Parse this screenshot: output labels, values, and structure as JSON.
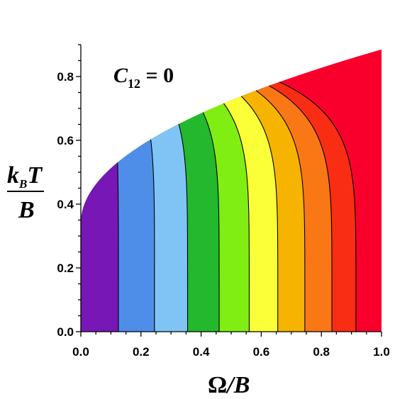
{
  "chart_data": {
    "type": "area",
    "title": "",
    "annotation": {
      "base": "C",
      "subscript": "12",
      "rest": " = 0"
    },
    "xlabel": {
      "numerator": "Ω",
      "slash": "/",
      "denominator": "B"
    },
    "ylabel": {
      "k": "k",
      "sub": "B",
      "T": "T",
      "denominator": "B"
    },
    "xlim": [
      0.0,
      1.0
    ],
    "ylim": [
      0.0,
      0.9
    ],
    "xticks": [
      "0.0",
      "0.2",
      "0.4",
      "0.6",
      "0.8",
      "1.0"
    ],
    "yticks": [
      "0.0",
      "0.2",
      "0.4",
      "0.6",
      "0.8"
    ],
    "grid": false,
    "boundary_y_at_omega_1": 0.885,
    "boundary_y_at_omega_0": 0.34,
    "contour_x_at_y0": [
      0.0,
      0.125,
      0.245,
      0.355,
      0.46,
      0.56,
      0.655,
      0.745,
      0.835,
      0.915
    ],
    "colors": [
      "#7617b6",
      "#1f4fe6",
      "#4f8ee8",
      "#80c4f6",
      "#23b82e",
      "#80ee13",
      "#fbff37",
      "#f6b300",
      "#f97714",
      "#f82d13",
      "#f8002b"
    ]
  }
}
